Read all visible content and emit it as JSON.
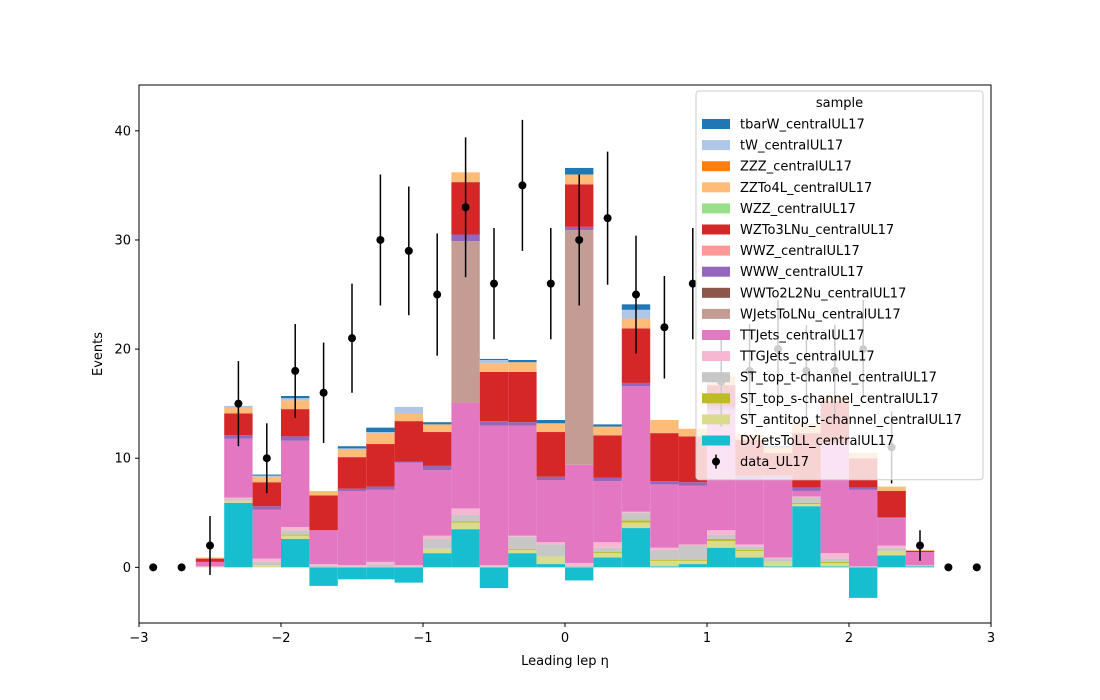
{
  "chart_data": {
    "type": "bar",
    "stacked": true,
    "xlabel": "Leading lep η",
    "ylabel": "Events",
    "xlim": [
      -3,
      3
    ],
    "ylim": [
      -5.1,
      44.2
    ],
    "xticks": [
      -3,
      -2,
      -1,
      0,
      1,
      2,
      3
    ],
    "xtick_labels": [
      "−3",
      "−2",
      "−1",
      "0",
      "1",
      "2",
      "3"
    ],
    "yticks": [
      0,
      10,
      20,
      30,
      40
    ],
    "ytick_labels": [
      "0",
      "10",
      "20",
      "30",
      "40"
    ],
    "bin_edges": [
      -2.6,
      -2.4,
      -2.2,
      -2.0,
      -1.8,
      -1.6,
      -1.4,
      -1.2,
      -1.0,
      -0.8,
      -0.6,
      -0.4,
      -0.2,
      0.0,
      0.2,
      0.4,
      0.6,
      0.8,
      1.0,
      1.2,
      1.4,
      1.6,
      1.8,
      2.0,
      2.2,
      2.4,
      2.6
    ],
    "legend": {
      "title": "sample",
      "position": "top-right"
    },
    "series": [
      {
        "name": "DYJetsToLL_centralUL17",
        "color": "#17becf",
        "values": [
          0,
          5.9,
          0,
          2.6,
          -1.7,
          -1.1,
          -1.1,
          -1.4,
          1.3,
          3.5,
          -1.9,
          1.3,
          0.3,
          -1.2,
          0.9,
          3.6,
          0.1,
          0.3,
          1.8,
          0.9,
          0.1,
          5.6,
          0.1,
          -2.8,
          1.1,
          0.1
        ]
      },
      {
        "name": "ST_antitop_t-channel_centralUL17",
        "color": "#dbdb8d",
        "values": [
          0,
          0.2,
          0.2,
          0.3,
          0,
          0,
          0,
          0,
          0.4,
          0.6,
          0,
          0.3,
          0.7,
          0,
          0.4,
          0.5,
          0.5,
          0.3,
          0.6,
          0.6,
          0.4,
          0.2,
          0.3,
          0,
          0.4,
          0
        ]
      },
      {
        "name": "ST_top_s-channel_centralUL17",
        "color": "#bcbd22",
        "values": [
          0,
          0,
          0,
          0.1,
          0,
          0,
          0,
          0,
          0,
          0.1,
          0,
          0.1,
          0,
          0,
          0.1,
          0.2,
          0.1,
          0.1,
          0.2,
          0.1,
          0,
          0.1,
          0.1,
          0,
          0,
          0
        ]
      },
      {
        "name": "ST_top_t-channel_centralUL17",
        "color": "#c7c7c7",
        "values": [
          0,
          0.2,
          0.3,
          0.4,
          0.2,
          0.1,
          0.3,
          0.1,
          0.9,
          0.6,
          0.1,
          1.1,
          1.1,
          0.2,
          0.4,
          0.7,
          0.9,
          1.3,
          0.4,
          0.3,
          0.3,
          0.5,
          0.3,
          0.1,
          0.3,
          0.1
        ]
      },
      {
        "name": "TTGJets_centralUL17",
        "color": "#f7b6d2",
        "values": [
          0.1,
          0.1,
          0.3,
          0.3,
          0.1,
          0.1,
          0.2,
          0.1,
          0.3,
          0.6,
          0.1,
          0.1,
          0.2,
          0.2,
          0.5,
          0.1,
          0.2,
          0.1,
          0.4,
          0.2,
          0.1,
          0.1,
          0.5,
          0,
          0.2,
          0
        ]
      },
      {
        "name": "TTJets_centralUL17",
        "color": "#e377c2",
        "values": [
          0.4,
          5.4,
          4.5,
          7.9,
          3.1,
          6.8,
          6.6,
          9.4,
          6.0,
          9.7,
          12.8,
          10.1,
          5.7,
          9.0,
          5.6,
          11.5,
          5.8,
          5.4,
          11.0,
          6.0,
          7.3,
          0.5,
          10.0,
          7.0,
          2.5,
          1.2
        ]
      },
      {
        "name": "WJetsToLNu_centralUL17",
        "color": "#c49c94",
        "values": [
          0,
          0,
          0,
          0,
          0,
          0,
          0,
          0,
          0,
          14.8,
          0,
          0,
          0,
          21.5,
          0,
          0,
          0,
          0,
          0,
          0,
          0,
          0,
          0,
          0,
          0,
          0
        ]
      },
      {
        "name": "WWTo2L2Nu_centralUL17",
        "color": "#8c564b",
        "values": [
          0,
          0,
          0,
          0,
          0,
          0,
          0,
          0,
          0,
          0,
          0,
          0,
          0,
          0,
          0,
          0,
          0,
          0,
          0,
          0,
          0,
          0,
          0,
          0,
          0,
          0
        ]
      },
      {
        "name": "WWW_centralUL17",
        "color": "#9467bd",
        "values": [
          0,
          0.3,
          0.3,
          0.4,
          0,
          0.2,
          0.3,
          0.1,
          0.4,
          0.6,
          0.4,
          0.3,
          0.3,
          0.3,
          0.3,
          0.3,
          0.3,
          0.3,
          0.3,
          0.3,
          0.2,
          0.3,
          0.1,
          0.2,
          0.1,
          0
        ]
      },
      {
        "name": "WWZ_centralUL17",
        "color": "#ff9896",
        "values": [
          0,
          0,
          0,
          0,
          0,
          0,
          0,
          0,
          0,
          0,
          0,
          0,
          0,
          0,
          0,
          0,
          0,
          0,
          0,
          0,
          0,
          0,
          0,
          0,
          0,
          0
        ]
      },
      {
        "name": "WZTo3LNu_centralUL17",
        "color": "#d62728",
        "values": [
          0.3,
          2.0,
          2.2,
          2.5,
          3.2,
          2.9,
          3.9,
          3.7,
          3.1,
          4.8,
          4.5,
          4.6,
          4.1,
          3.9,
          3.9,
          5.0,
          4.4,
          4.2,
          2.0,
          3.3,
          2.1,
          5.0,
          3.8,
          2.7,
          2.4,
          0.1
        ]
      },
      {
        "name": "WZZ_centralUL17",
        "color": "#98df8a",
        "values": [
          0,
          0,
          0,
          0,
          0,
          0,
          0,
          0,
          0,
          0,
          0,
          0,
          0,
          0,
          0,
          0,
          0,
          0,
          0,
          0,
          0,
          0,
          0,
          0,
          0,
          0
        ]
      },
      {
        "name": "ZZTo4L_centralUL17",
        "color": "#ffbb78",
        "values": [
          0.1,
          0.5,
          0.5,
          0.8,
          0.4,
          0.7,
          1.0,
          0.7,
          0.7,
          0.9,
          0.8,
          0.9,
          0.8,
          0.9,
          0.8,
          0.9,
          1.2,
          0.7,
          0.8,
          0.5,
          0.5,
          0.9,
          0.5,
          0.5,
          0.4,
          0.1
        ]
      },
      {
        "name": "ZZZ_centralUL17",
        "color": "#ff7f0e",
        "values": [
          0,
          0,
          0,
          0,
          0,
          0,
          0,
          0,
          0,
          0,
          0,
          0,
          0,
          0,
          0,
          0,
          0,
          0,
          0,
          0,
          0,
          0,
          0,
          0,
          0,
          0
        ]
      },
      {
        "name": "tW_centralUL17",
        "color": "#aec7e8",
        "values": [
          0,
          0.2,
          0.1,
          0.2,
          0,
          0.1,
          0.1,
          0.6,
          0,
          0,
          0.3,
          0,
          0,
          0,
          0,
          0.8,
          0,
          0,
          0,
          0,
          0,
          0,
          0,
          0,
          0,
          0
        ]
      },
      {
        "name": "tbarW_centralUL17",
        "color": "#1f77b4",
        "values": [
          0,
          0,
          0.1,
          0.2,
          0,
          0.2,
          0.4,
          0,
          0.2,
          0,
          0.1,
          0.2,
          0.3,
          0.6,
          0.2,
          0.5,
          0,
          0,
          0,
          0,
          0.1,
          0,
          0,
          0,
          0,
          0
        ]
      }
    ],
    "data": {
      "name": "data_UL17",
      "color": "#000000",
      "x": [
        -2.9,
        -2.7,
        -2.5,
        -2.3,
        -2.1,
        -1.9,
        -1.7,
        -1.5,
        -1.3,
        -1.1,
        -0.9,
        -0.7,
        -0.5,
        -0.3,
        -0.1,
        0.1,
        0.3,
        0.5,
        0.7,
        0.9,
        1.1,
        1.3,
        1.5,
        1.7,
        1.9,
        2.1,
        2.3,
        2.5,
        2.7,
        2.9
      ],
      "y": [
        0,
        0,
        2,
        15,
        10,
        18,
        16,
        21,
        30,
        29,
        25,
        33,
        26,
        35,
        26,
        30,
        32,
        25,
        22,
        26,
        17,
        18,
        20,
        18,
        18,
        20,
        11,
        2,
        0,
        0
      ],
      "err": [
        0,
        0,
        2.7,
        3.9,
        3.2,
        4.3,
        4.6,
        5.0,
        6.0,
        5.9,
        5.6,
        6.4,
        5.1,
        6.0,
        5.1,
        6.0,
        6.1,
        5.4,
        4.7,
        5.1,
        4.1,
        4.3,
        4.5,
        4.2,
        4.2,
        4.5,
        3.3,
        1.4,
        0,
        0
      ]
    }
  }
}
